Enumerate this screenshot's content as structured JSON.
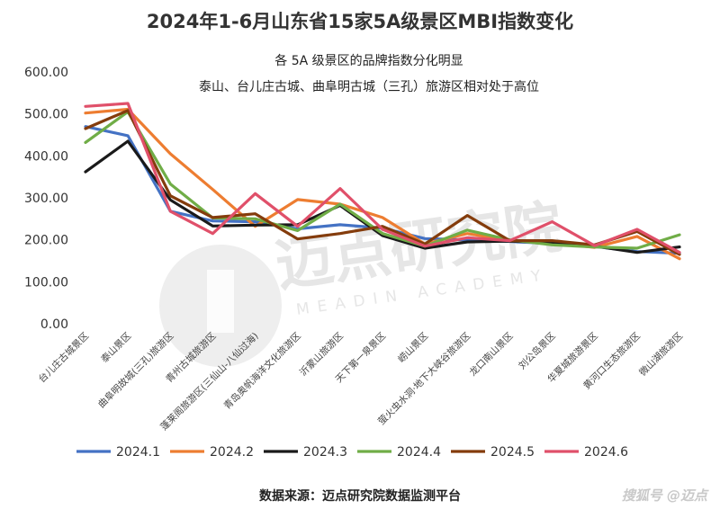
{
  "header": {
    "title": "2024年1-6月山东省15家5A级景区MBI指数变化"
  },
  "annotation": {
    "line1": "各 5A 级景区的品牌指数分化明显",
    "line2": "泰山、台儿庄古城、曲阜明古城（三孔）旅游区相对处于高位"
  },
  "footer": {
    "source": "数据来源：迈点研究院数据监测平台",
    "brand": "搜狐号 @迈点"
  },
  "watermark": {
    "text": "迈点研究院",
    "sub": "MEADIN ACADEMY"
  },
  "chart_data": {
    "type": "line",
    "title": "2024年1-6月山东省15家5A级景区MBI指数变化",
    "xlabel": "",
    "ylabel": "",
    "ylim": [
      0,
      600
    ],
    "yticks": [
      "0.00",
      "100.00",
      "200.00",
      "300.00",
      "400.00",
      "500.00",
      "600.00"
    ],
    "grid": false,
    "legend": "bottom",
    "categories": [
      "台儿庄古城景区",
      "泰山景区",
      "曲阜明故城(三孔)旅游区",
      "青州古城旅游区",
      "蓬莱阁旅游区(三仙山-八仙过海)",
      "青岛奥帆海洋文化旅游区",
      "沂蒙山旅游区",
      "天下第一泉景区",
      "崂山景区",
      "萤火虫水洞·地下大峡谷旅游区",
      "龙口南山景区",
      "刘公岛景区",
      "华夏城旅游景区",
      "黄河口生态旅游区",
      "微山湖旅游区"
    ],
    "series": [
      {
        "name": "2024.1",
        "color": "#4472C4",
        "values": [
          470,
          448,
          268,
          245,
          243,
          226,
          236,
          228,
          203,
          200,
          196,
          191,
          184,
          172,
          168
        ]
      },
      {
        "name": "2024.2",
        "color": "#ED7D31",
        "values": [
          502,
          511,
          405,
          320,
          232,
          296,
          285,
          253,
          190,
          215,
          198,
          193,
          182,
          208,
          155
        ]
      },
      {
        "name": "2024.3",
        "color": "#1A1A1A",
        "values": [
          362,
          435,
          295,
          233,
          235,
          236,
          282,
          210,
          180,
          195,
          197,
          194,
          185,
          170,
          183
        ]
      },
      {
        "name": "2024.4",
        "color": "#70AD47",
        "values": [
          432,
          505,
          333,
          252,
          250,
          222,
          285,
          215,
          185,
          223,
          200,
          188,
          183,
          180,
          212
        ]
      },
      {
        "name": "2024.5",
        "color": "#843C0C",
        "values": [
          465,
          508,
          305,
          253,
          262,
          202,
          215,
          232,
          190,
          258,
          198,
          198,
          188,
          220,
          165
        ]
      },
      {
        "name": "2024.6",
        "color": "#E0506A",
        "values": [
          518,
          525,
          268,
          215,
          310,
          232,
          322,
          225,
          185,
          205,
          198,
          243,
          186,
          225,
          170
        ]
      }
    ]
  }
}
